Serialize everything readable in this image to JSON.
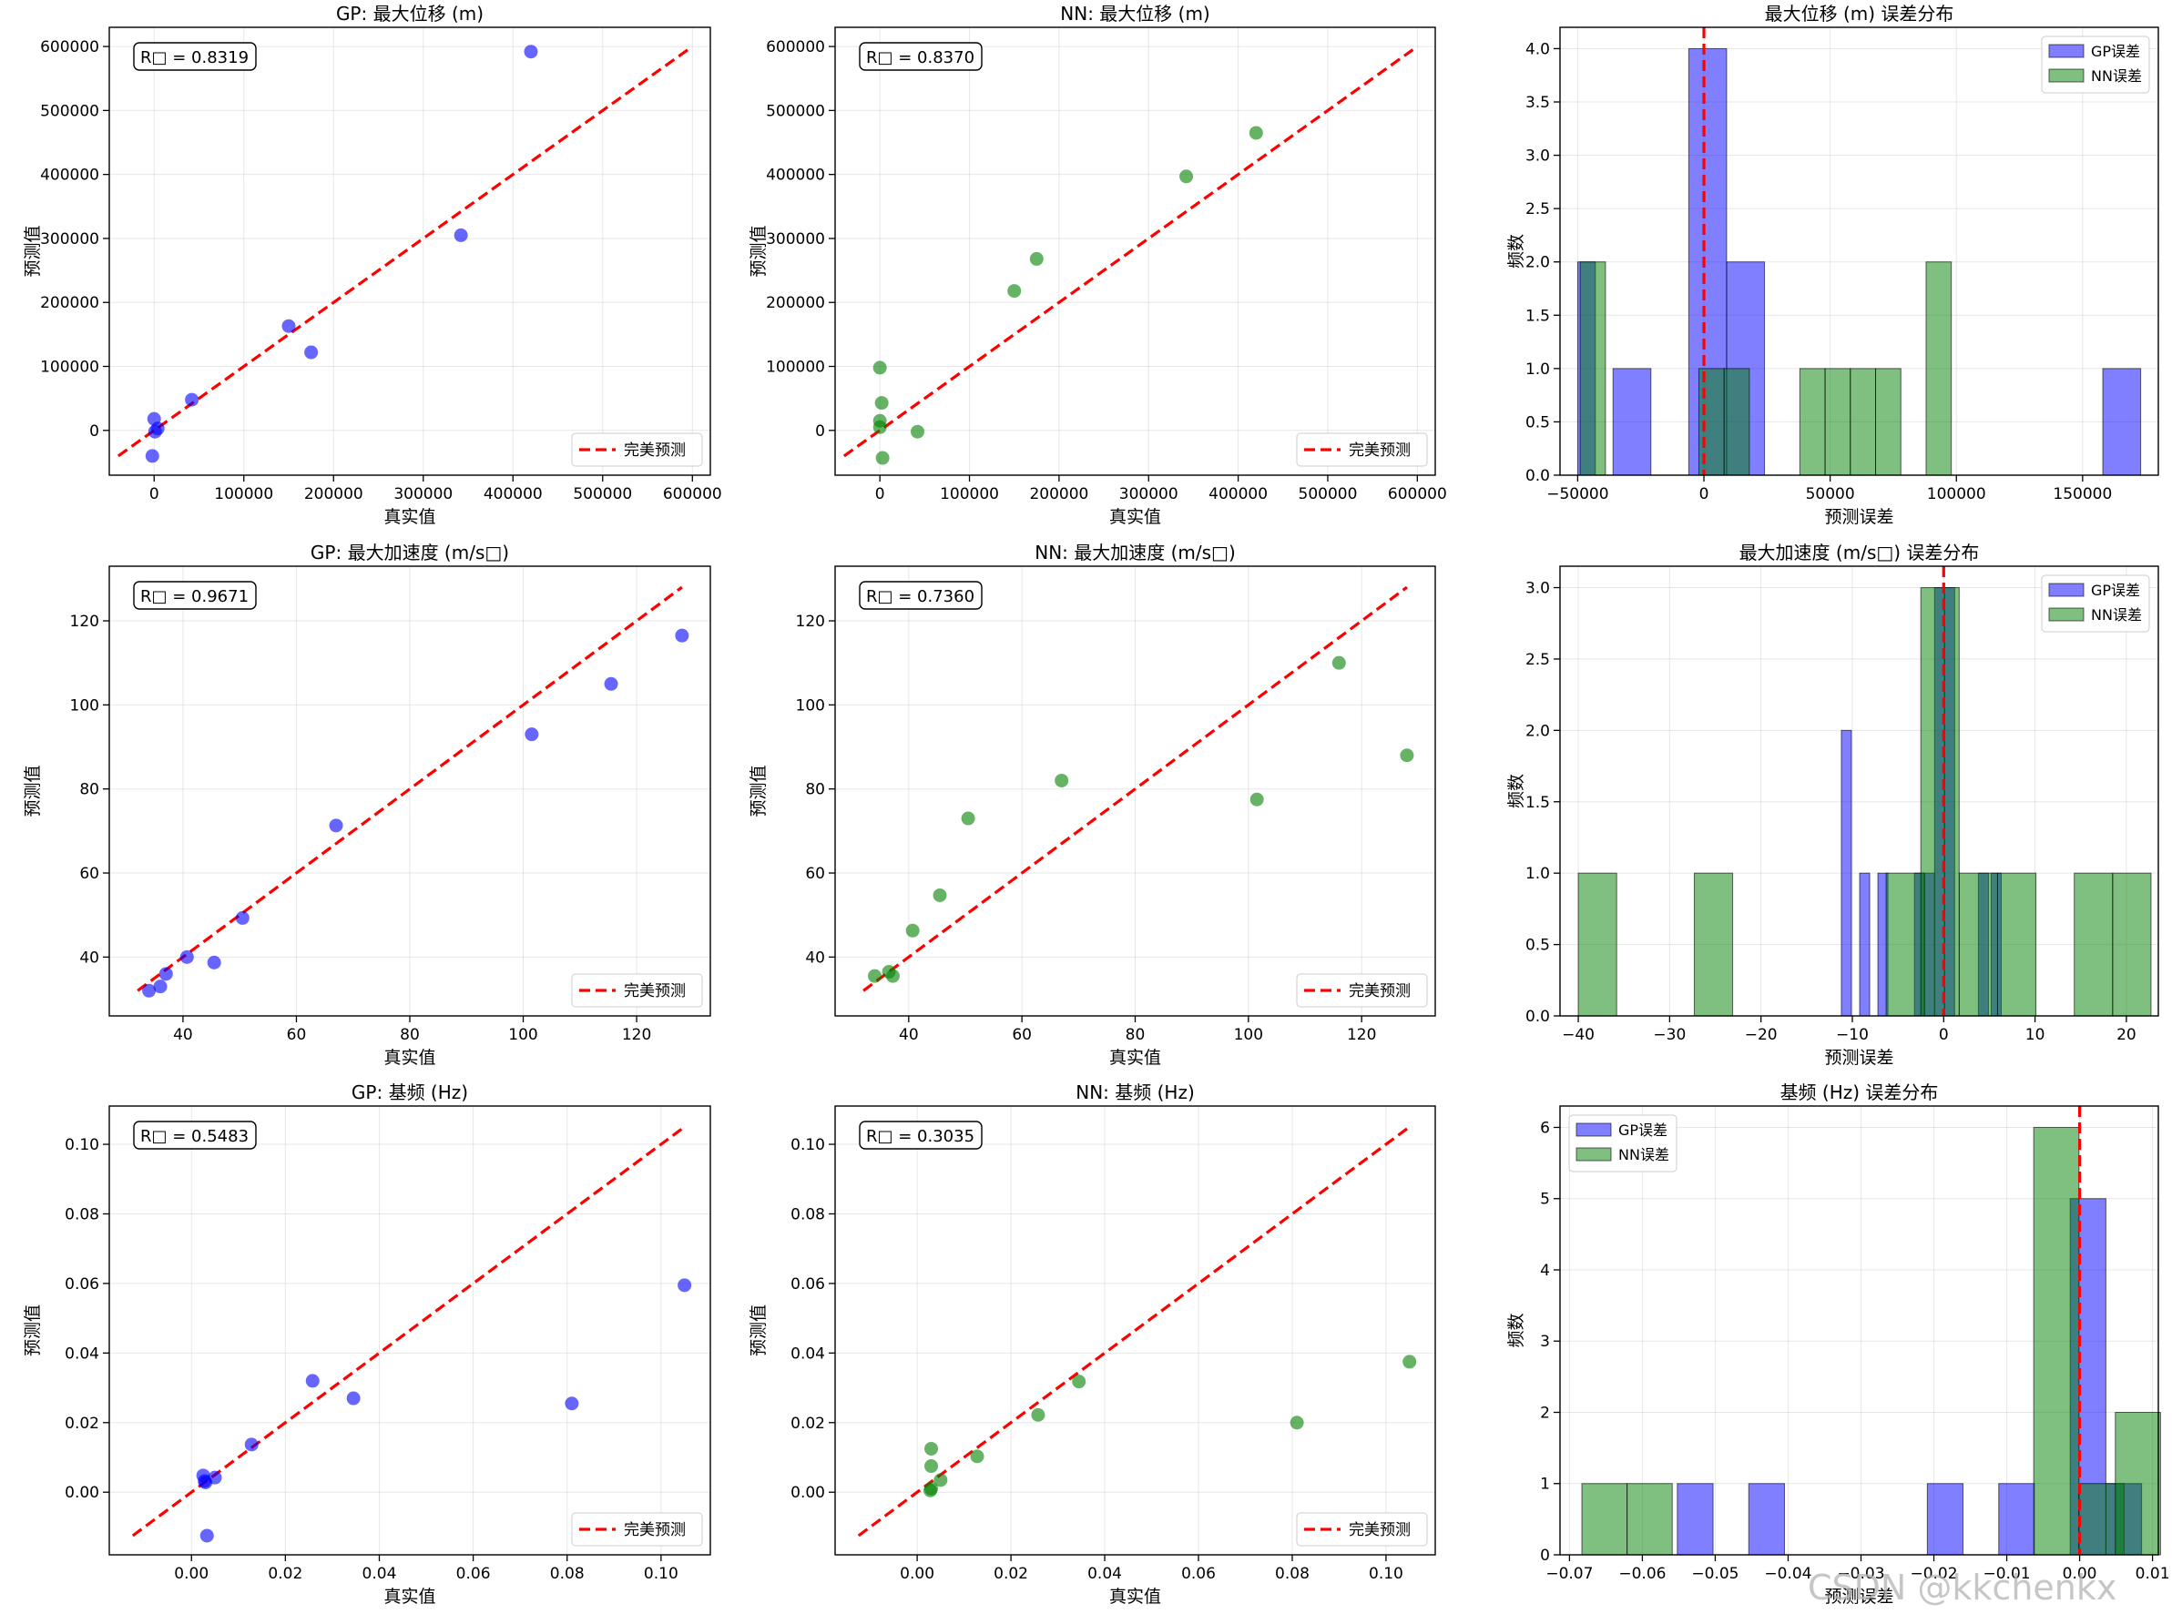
{
  "chart_data": [
    {
      "type": "scatter",
      "title": "GP: 最大位移 (m)",
      "xlabel": "真实值",
      "ylabel": "预测值",
      "color": "#0000ff",
      "xlim": [
        -50000,
        620000
      ],
      "ylim": [
        -70000,
        630000
      ],
      "xticks": [
        0,
        100000,
        200000,
        300000,
        400000,
        500000,
        600000
      ],
      "yticks": [
        0,
        100000,
        200000,
        300000,
        400000,
        500000,
        600000
      ],
      "tick_labels_x": [
        "0",
        "100000",
        "200000",
        "300000",
        "400000",
        "500000",
        "600000"
      ],
      "tick_labels_y": [
        "0",
        "100000",
        "200000",
        "300000",
        "400000",
        "500000",
        "600000"
      ],
      "points": [
        [
          420000,
          592000
        ],
        [
          342000,
          305000
        ],
        [
          150000,
          163000
        ],
        [
          175000,
          122000
        ],
        [
          42000,
          48000
        ],
        [
          0,
          18000
        ],
        [
          4000,
          3000
        ],
        [
          1000,
          -2000
        ],
        [
          -2000,
          -40000
        ]
      ],
      "r2_text": "R□ = 0.8319",
      "line": [
        -40000,
        595000
      ],
      "legend": "完美预测"
    },
    {
      "type": "scatter",
      "title": "NN: 最大位移 (m)",
      "xlabel": "真实值",
      "ylabel": "预测值",
      "color": "#008000",
      "xlim": [
        -50000,
        620000
      ],
      "ylim": [
        -70000,
        630000
      ],
      "xticks": [
        0,
        100000,
        200000,
        300000,
        400000,
        500000,
        600000
      ],
      "yticks": [
        0,
        100000,
        200000,
        300000,
        400000,
        500000,
        600000
      ],
      "tick_labels_x": [
        "0",
        "100000",
        "200000",
        "300000",
        "400000",
        "500000",
        "600000"
      ],
      "tick_labels_y": [
        "0",
        "100000",
        "200000",
        "300000",
        "400000",
        "500000",
        "600000"
      ],
      "points": [
        [
          420000,
          465000
        ],
        [
          342000,
          397000
        ],
        [
          175000,
          268000
        ],
        [
          150000,
          218000
        ],
        [
          0,
          98000
        ],
        [
          2000,
          43000
        ],
        [
          0,
          15000
        ],
        [
          0,
          5000
        ],
        [
          42000,
          -2000
        ],
        [
          3000,
          -43000
        ]
      ],
      "r2_text": "R□ = 0.8370",
      "line": [
        -40000,
        595000
      ],
      "legend": "完美预测"
    },
    {
      "type": "histogram",
      "title": "最大位移 (m) 误差分布",
      "xlabel": "预测误差",
      "ylabel": "频数",
      "xlim": [
        -57000,
        180000
      ],
      "ylim": [
        0,
        4.2
      ],
      "xticks": [
        -50000,
        0,
        50000,
        100000,
        150000
      ],
      "yticks": [
        0,
        0.5,
        1,
        1.5,
        2,
        2.5,
        3,
        3.5,
        4
      ],
      "tick_labels_x": [
        "−50000",
        "0",
        "50000",
        "100000",
        "150000"
      ],
      "tick_labels_y": [
        "0.0",
        "0.5",
        "1.0",
        "1.5",
        "2.0",
        "2.5",
        "3.0",
        "3.5",
        "4.0"
      ],
      "zero_line": 0,
      "legend_position": "top-right",
      "series": [
        {
          "name": "GP误差",
          "color": "#0000ff",
          "bins": [
            [
              -50000,
              -43000,
              2
            ],
            [
              -36000,
              -21000,
              1
            ],
            [
              -6000,
              9000,
              4
            ],
            [
              9000,
              24000,
              2
            ],
            [
              158000,
              173000,
              1
            ]
          ]
        },
        {
          "name": "NN误差",
          "color": "#008000",
          "bins": [
            [
              -49000,
              -39000,
              2
            ],
            [
              -2000,
              8000,
              1
            ],
            [
              8000,
              18000,
              1
            ],
            [
              38000,
              48000,
              1
            ],
            [
              48000,
              58000,
              1
            ],
            [
              58000,
              68000,
              1
            ],
            [
              68000,
              78000,
              1
            ],
            [
              88000,
              98000,
              2
            ]
          ]
        }
      ]
    },
    {
      "type": "scatter",
      "title": "GP: 最大加速度 (m/s□)",
      "xlabel": "真实值",
      "ylabel": "预测值",
      "color": "#0000ff",
      "xlim": [
        27,
        133
      ],
      "ylim": [
        26,
        133
      ],
      "xticks": [
        40,
        60,
        80,
        100,
        120
      ],
      "yticks": [
        40,
        60,
        80,
        100,
        120
      ],
      "tick_labels_x": [
        "40",
        "60",
        "80",
        "100",
        "120"
      ],
      "tick_labels_y": [
        "40",
        "60",
        "80",
        "100",
        "120"
      ],
      "points": [
        [
          128,
          116.5
        ],
        [
          115.5,
          105
        ],
        [
          101.5,
          93
        ],
        [
          67,
          71.3
        ],
        [
          50.5,
          49.3
        ],
        [
          40.7,
          40
        ],
        [
          37,
          36
        ],
        [
          36,
          33
        ],
        [
          34,
          32
        ],
        [
          45.5,
          38.7
        ]
      ],
      "r2_text": "R□ = 0.9671",
      "line": [
        32,
        128
      ],
      "legend": "完美预测"
    },
    {
      "type": "scatter",
      "title": "NN: 最大加速度 (m/s□)",
      "xlabel": "真实值",
      "ylabel": "预测值",
      "color": "#008000",
      "xlim": [
        27,
        133
      ],
      "ylim": [
        26,
        133
      ],
      "xticks": [
        40,
        60,
        80,
        100,
        120
      ],
      "yticks": [
        40,
        60,
        80,
        100,
        120
      ],
      "tick_labels_x": [
        "40",
        "60",
        "80",
        "100",
        "120"
      ],
      "tick_labels_y": [
        "40",
        "60",
        "80",
        "100",
        "120"
      ],
      "points": [
        [
          116,
          110
        ],
        [
          128,
          88
        ],
        [
          101.5,
          77.5
        ],
        [
          67,
          82
        ],
        [
          50.5,
          73
        ],
        [
          45.5,
          54.7
        ],
        [
          40.7,
          46.3
        ],
        [
          36.5,
          36.5
        ],
        [
          37.2,
          35.5
        ],
        [
          34,
          35.5
        ]
      ],
      "r2_text": "R□ = 0.7360",
      "line": [
        32,
        128
      ],
      "legend": "完美预测"
    },
    {
      "type": "histogram",
      "title": "最大加速度 (m/s□) 误差分布",
      "xlabel": "预测误差",
      "ylabel": "频数",
      "xlim": [
        -42,
        23.5
      ],
      "ylim": [
        0,
        3.15
      ],
      "xticks": [
        -40,
        -30,
        -20,
        -10,
        0,
        10,
        20
      ],
      "yticks": [
        0,
        0.5,
        1,
        1.5,
        2,
        2.5,
        3
      ],
      "tick_labels_x": [
        "−40",
        "−30",
        "−20",
        "−10",
        "0",
        "10",
        "20"
      ],
      "tick_labels_y": [
        "0.0",
        "0.5",
        "1.0",
        "1.5",
        "2.0",
        "2.5",
        "3.0"
      ],
      "zero_line": 0,
      "legend_position": "top-right",
      "series": [
        {
          "name": "GP误差",
          "color": "#0000ff",
          "bins": [
            [
              -11.2,
              -10.1,
              2
            ],
            [
              -9.2,
              -8.1,
              1
            ],
            [
              -7.2,
              -6.1,
              1
            ],
            [
              -3.2,
              -2.1,
              1
            ],
            [
              -2.1,
              -1.0,
              1
            ],
            [
              -1.0,
              0.1,
              3
            ],
            [
              0.1,
              1.2,
              3
            ],
            [
              3.8,
              4.9,
              1
            ],
            [
              5.2,
              6.3,
              1
            ]
          ]
        },
        {
          "name": "NN误差",
          "color": "#008000",
          "bins": [
            [
              -40,
              -35.8,
              1
            ],
            [
              -27.3,
              -23.1,
              1
            ],
            [
              -6.3,
              -2.1,
              1
            ],
            [
              -2.5,
              1.7,
              3
            ],
            [
              1.7,
              5.9,
              1
            ],
            [
              5.9,
              10.1,
              1
            ],
            [
              14.3,
              18.5,
              1
            ],
            [
              18.5,
              22.7,
              1
            ]
          ]
        }
      ]
    },
    {
      "type": "scatter",
      "title": "GP: 基频 (Hz)",
      "xlabel": "真实值",
      "ylabel": "预测值",
      "color": "#0000ff",
      "xlim": [
        -0.0175,
        0.1105
      ],
      "ylim": [
        -0.018,
        0.111
      ],
      "xticks": [
        0,
        0.02,
        0.04,
        0.06,
        0.08,
        0.1
      ],
      "yticks": [
        0,
        0.02,
        0.04,
        0.06,
        0.08,
        0.1
      ],
      "tick_labels_x": [
        "0.00",
        "0.02",
        "0.04",
        "0.06",
        "0.08",
        "0.10"
      ],
      "tick_labels_y": [
        "0.00",
        "0.02",
        "0.04",
        "0.06",
        "0.08",
        "0.10"
      ],
      "points": [
        [
          0.105,
          0.0595
        ],
        [
          0.081,
          0.0255
        ],
        [
          0.0345,
          0.027
        ],
        [
          0.0258,
          0.032
        ],
        [
          0.0128,
          0.0137
        ],
        [
          0.005,
          0.0042
        ],
        [
          0.0025,
          0.0048
        ],
        [
          0.0028,
          0.0032
        ],
        [
          0.003,
          0.0028
        ],
        [
          0.0033,
          -0.0125
        ]
      ],
      "r2_text": "R□ = 0.5483",
      "line": [
        -0.0125,
        0.105
      ],
      "legend": "完美预测"
    },
    {
      "type": "scatter",
      "title": "NN: 基频 (Hz)",
      "xlabel": "真实值",
      "ylabel": "预测值",
      "color": "#008000",
      "xlim": [
        -0.0175,
        0.1105
      ],
      "ylim": [
        -0.018,
        0.111
      ],
      "xticks": [
        0,
        0.02,
        0.04,
        0.06,
        0.08,
        0.1
      ],
      "yticks": [
        0,
        0.02,
        0.04,
        0.06,
        0.08,
        0.1
      ],
      "tick_labels_x": [
        "0.00",
        "0.02",
        "0.04",
        "0.06",
        "0.08",
        "0.10"
      ],
      "tick_labels_y": [
        "0.00",
        "0.02",
        "0.04",
        "0.06",
        "0.08",
        "0.10"
      ],
      "points": [
        [
          0.105,
          0.0375
        ],
        [
          0.081,
          0.02
        ],
        [
          0.0345,
          0.0318
        ],
        [
          0.0258,
          0.0222
        ],
        [
          0.0128,
          0.0103
        ],
        [
          0.005,
          0.0035
        ],
        [
          0.003,
          0.0125
        ],
        [
          0.003,
          0.0075
        ],
        [
          0.003,
          0.001
        ],
        [
          0.0028,
          0.0005
        ]
      ],
      "r2_text": "R□ = 0.3035",
      "line": [
        -0.0125,
        0.105
      ],
      "legend": "完美预测"
    },
    {
      "type": "histogram",
      "title": "基频 (Hz) 误差分布",
      "xlabel": "预测误差",
      "ylabel": "频数",
      "xlim": [
        -0.0713,
        0.0108
      ],
      "ylim": [
        0,
        6.3
      ],
      "xticks": [
        -0.07,
        -0.06,
        -0.05,
        -0.04,
        -0.03,
        -0.02,
        -0.01,
        0,
        0.01
      ],
      "yticks": [
        0,
        1,
        2,
        3,
        4,
        5,
        6
      ],
      "tick_labels_x": [
        "−0.07",
        "−0.06",
        "−0.05",
        "−0.04",
        "−0.03",
        "−0.02",
        "−0.01",
        "0.00",
        "0.01"
      ],
      "tick_labels_y": [
        "0",
        "1",
        "2",
        "3",
        "4",
        "5",
        "6"
      ],
      "zero_line": 0,
      "legend_position": "top-left",
      "series": [
        {
          "name": "GP误差",
          "color": "#0000ff",
          "bins": [
            [
              -0.0552,
              -0.0503,
              1
            ],
            [
              -0.0454,
              -0.0405,
              1
            ],
            [
              -0.0209,
              -0.016,
              1
            ],
            [
              -0.0111,
              -0.0062,
              1
            ],
            [
              -0.0013,
              0.0036,
              5
            ],
            [
              0.0036,
              0.0085,
              1
            ]
          ]
        },
        {
          "name": "NN误差",
          "color": "#008000",
          "bins": [
            [
              -0.0683,
              -0.0621,
              1
            ],
            [
              -0.0621,
              -0.0559,
              1
            ],
            [
              -0.0063,
              -0.0001,
              6
            ],
            [
              -0.0001,
              0.0061,
              1
            ],
            [
              0.0049,
              0.0111,
              2
            ]
          ]
        }
      ]
    }
  ],
  "watermark": "CSDN @kkchenkx"
}
